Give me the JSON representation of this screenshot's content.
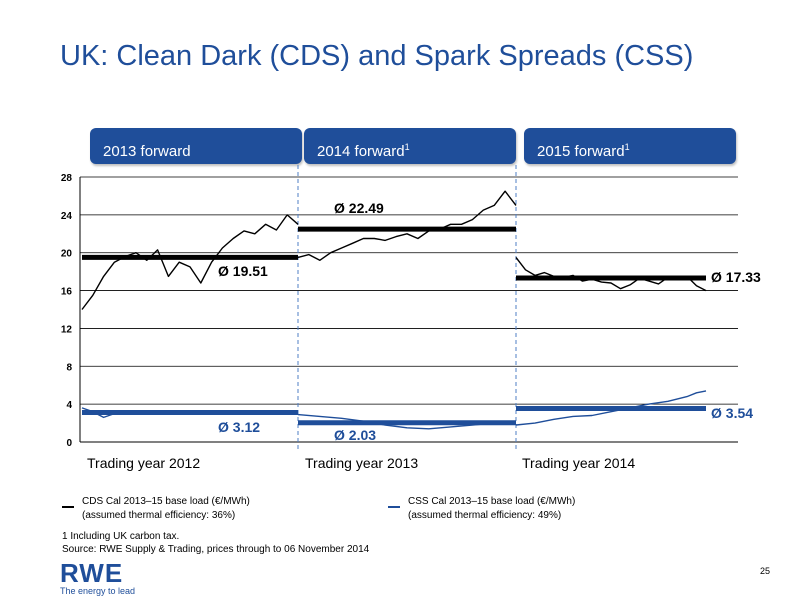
{
  "title": "UK: Clean Dark (CDS) and Spark Spreads (CSS)",
  "periods": [
    {
      "label": "2013 forward",
      "sup": ""
    },
    {
      "label": "2014 forward",
      "sup": "1"
    },
    {
      "label": "2015 forward",
      "sup": "1"
    }
  ],
  "chart_data": {
    "type": "line",
    "y_ticks": [
      "0",
      "4",
      "8",
      "12",
      "16",
      "20",
      "24",
      "28"
    ],
    "ylim": [
      0,
      28
    ],
    "grid": true,
    "segments": [
      "Trading year 2012",
      "Trading year 2013",
      "Trading year 2014"
    ],
    "series": [
      {
        "name": "CDS Cal 2013–15 base load (€/MWh)",
        "color": "#000000",
        "segments": [
          {
            "x": [
              0,
              0.05,
              0.1,
              0.15,
              0.2,
              0.25,
              0.3,
              0.35,
              0.4,
              0.45,
              0.5,
              0.55,
              0.6,
              0.65,
              0.7,
              0.75,
              0.8,
              0.85,
              0.9,
              0.95,
              1.0
            ],
            "values": [
              14.0,
              15.5,
              17.5,
              19.0,
              19.6,
              20.0,
              19.2,
              20.3,
              17.5,
              19.0,
              18.5,
              16.8,
              19.0,
              20.5,
              21.5,
              22.3,
              22.0,
              23.0,
              22.4,
              24.0,
              23.0
            ]
          },
          {
            "x": [
              0,
              0.05,
              0.1,
              0.15,
              0.2,
              0.25,
              0.3,
              0.35,
              0.4,
              0.45,
              0.5,
              0.55,
              0.6,
              0.65,
              0.7,
              0.75,
              0.8,
              0.85,
              0.9,
              0.95,
              1.0
            ],
            "values": [
              19.5,
              19.8,
              19.2,
              20.0,
              20.5,
              21.0,
              21.5,
              21.5,
              21.3,
              21.7,
              22.0,
              21.5,
              22.3,
              22.5,
              23.0,
              23.0,
              23.5,
              24.5,
              25.0,
              26.5,
              25.0
            ]
          },
          {
            "x": [
              0,
              0.05,
              0.1,
              0.15,
              0.2,
              0.25,
              0.3,
              0.35,
              0.4,
              0.45,
              0.5,
              0.55,
              0.6,
              0.65,
              0.7,
              0.75,
              0.8,
              0.85,
              0.9,
              0.95,
              1.0
            ],
            "values": [
              19.5,
              18.2,
              17.6,
              17.9,
              17.5,
              17.4,
              17.6,
              17.0,
              17.2,
              16.9,
              16.8,
              16.2,
              16.6,
              17.3,
              17.0,
              16.7,
              17.4,
              17.2,
              17.5,
              16.5,
              16.0
            ]
          }
        ],
        "averages": [
          {
            "value": 19.51,
            "label": "Ø 19.51"
          },
          {
            "value": 22.49,
            "label": "Ø 22.49"
          },
          {
            "value": 17.33,
            "label": "Ø 17.33"
          }
        ]
      },
      {
        "name": "CSS Cal 2013–15 base load (€/MWh)",
        "color": "#1f4e9a",
        "segments": [
          {
            "x": [
              0,
              0.05,
              0.1,
              0.15,
              0.2,
              0.25,
              0.3,
              0.35,
              0.4,
              0.5,
              0.6,
              0.7,
              0.8,
              0.9,
              1.0
            ],
            "values": [
              3.6,
              3.2,
              2.6,
              3.0,
              3.3,
              3.1,
              3.0,
              3.2,
              3.1,
              3.2,
              3.1,
              3.3,
              3.3,
              3.2,
              3.2
            ]
          },
          {
            "x": [
              0,
              0.1,
              0.2,
              0.3,
              0.4,
              0.5,
              0.6,
              0.7,
              0.8,
              0.9,
              1.0
            ],
            "values": [
              2.9,
              2.7,
              2.5,
              2.2,
              1.8,
              1.5,
              1.4,
              1.6,
              1.8,
              2.0,
              1.9
            ]
          },
          {
            "x": [
              0,
              0.1,
              0.2,
              0.3,
              0.4,
              0.5,
              0.6,
              0.7,
              0.8,
              0.9,
              0.95,
              1.0
            ],
            "values": [
              1.8,
              2.0,
              2.4,
              2.7,
              2.8,
              3.2,
              3.6,
              4.0,
              4.3,
              4.8,
              5.2,
              5.4
            ]
          }
        ],
        "averages": [
          {
            "value": 3.12,
            "label": "Ø 3.12"
          },
          {
            "value": 2.03,
            "label": "Ø 2.03"
          },
          {
            "value": 3.54,
            "label": "Ø 3.54"
          }
        ]
      }
    ]
  },
  "legend": [
    {
      "line1": "CDS Cal 2013–15 base load (€/MWh)",
      "line2": "(assumed thermal efficiency: 36%)",
      "color": "#000000"
    },
    {
      "line1": "CSS Cal 2013–15 base load (€/MWh)",
      "line2": "(assumed thermal efficiency: 49%)",
      "color": "#1f4e9a"
    }
  ],
  "footnote": "1 Including UK carbon tax.",
  "source": "Source: RWE Supply & Trading, prices through to 06 November 2014",
  "logo": {
    "name": "RWE",
    "tagline": "The energy to lead"
  },
  "page_number": "25"
}
